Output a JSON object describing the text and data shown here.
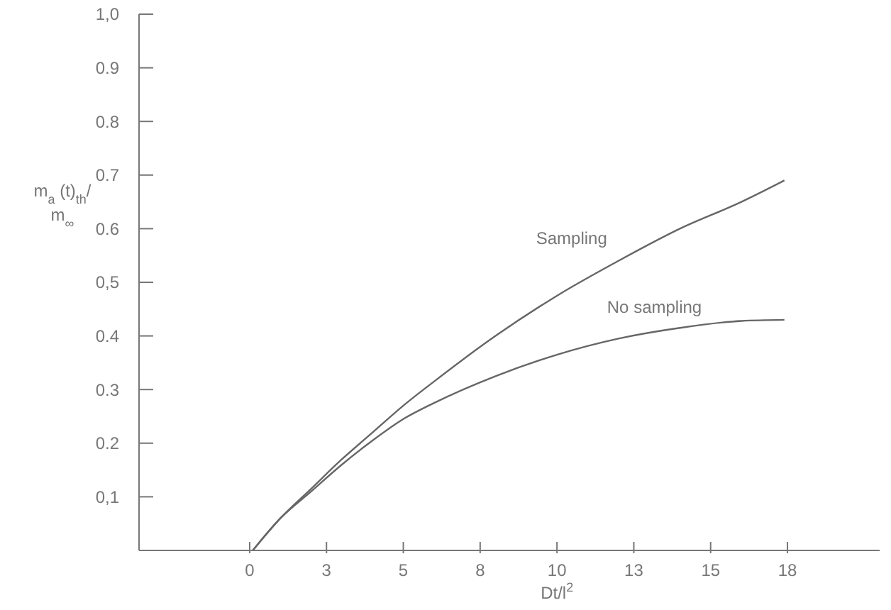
{
  "chart_data": {
    "type": "line",
    "xlabel": "Dt/l$^{2}$",
    "ylabel": "m$_{a}$ (t)$_{th}$/m$_{∞}$",
    "xlim": [
      -3.6,
      20.5
    ],
    "ylim": [
      0,
      1.0
    ],
    "xticks": [
      0,
      {
        "value": 2.5,
        "label": "3"
      },
      5,
      {
        "value": 7.5,
        "label": "8"
      },
      10,
      {
        "value": 12.5,
        "label": "13"
      },
      15,
      {
        "value": 17.5,
        "label": "18"
      }
    ],
    "yticks": [
      {
        "value": 0.1,
        "label": "0,1"
      },
      0.2,
      0.3,
      0.4,
      {
        "value": 0.5,
        "label": "0,5"
      },
      0.6,
      0.7,
      0.8,
      0.9,
      {
        "value": 1.0,
        "label": "1,0"
      }
    ],
    "grid": false,
    "marker": "none",
    "line_style": "solid",
    "series": [
      {
        "name": "Sampling",
        "color": "#666666",
        "x": [
          0.1,
          1,
          2,
          3,
          4,
          5,
          6,
          8,
          10,
          12,
          14,
          16,
          17.4
        ],
        "values": [
          0,
          0.06,
          0.115,
          0.17,
          0.22,
          0.27,
          0.315,
          0.4,
          0.475,
          0.54,
          0.6,
          0.65,
          0.69
        ]
      },
      {
        "name": "No sampling",
        "color": "#666666",
        "x": [
          0.1,
          1,
          2,
          3,
          4,
          5,
          6,
          8,
          10,
          12,
          14,
          16,
          17.4
        ],
        "values": [
          0,
          0.06,
          0.11,
          0.16,
          0.205,
          0.245,
          0.275,
          0.325,
          0.365,
          0.395,
          0.415,
          0.428,
          0.43
        ]
      }
    ]
  }
}
